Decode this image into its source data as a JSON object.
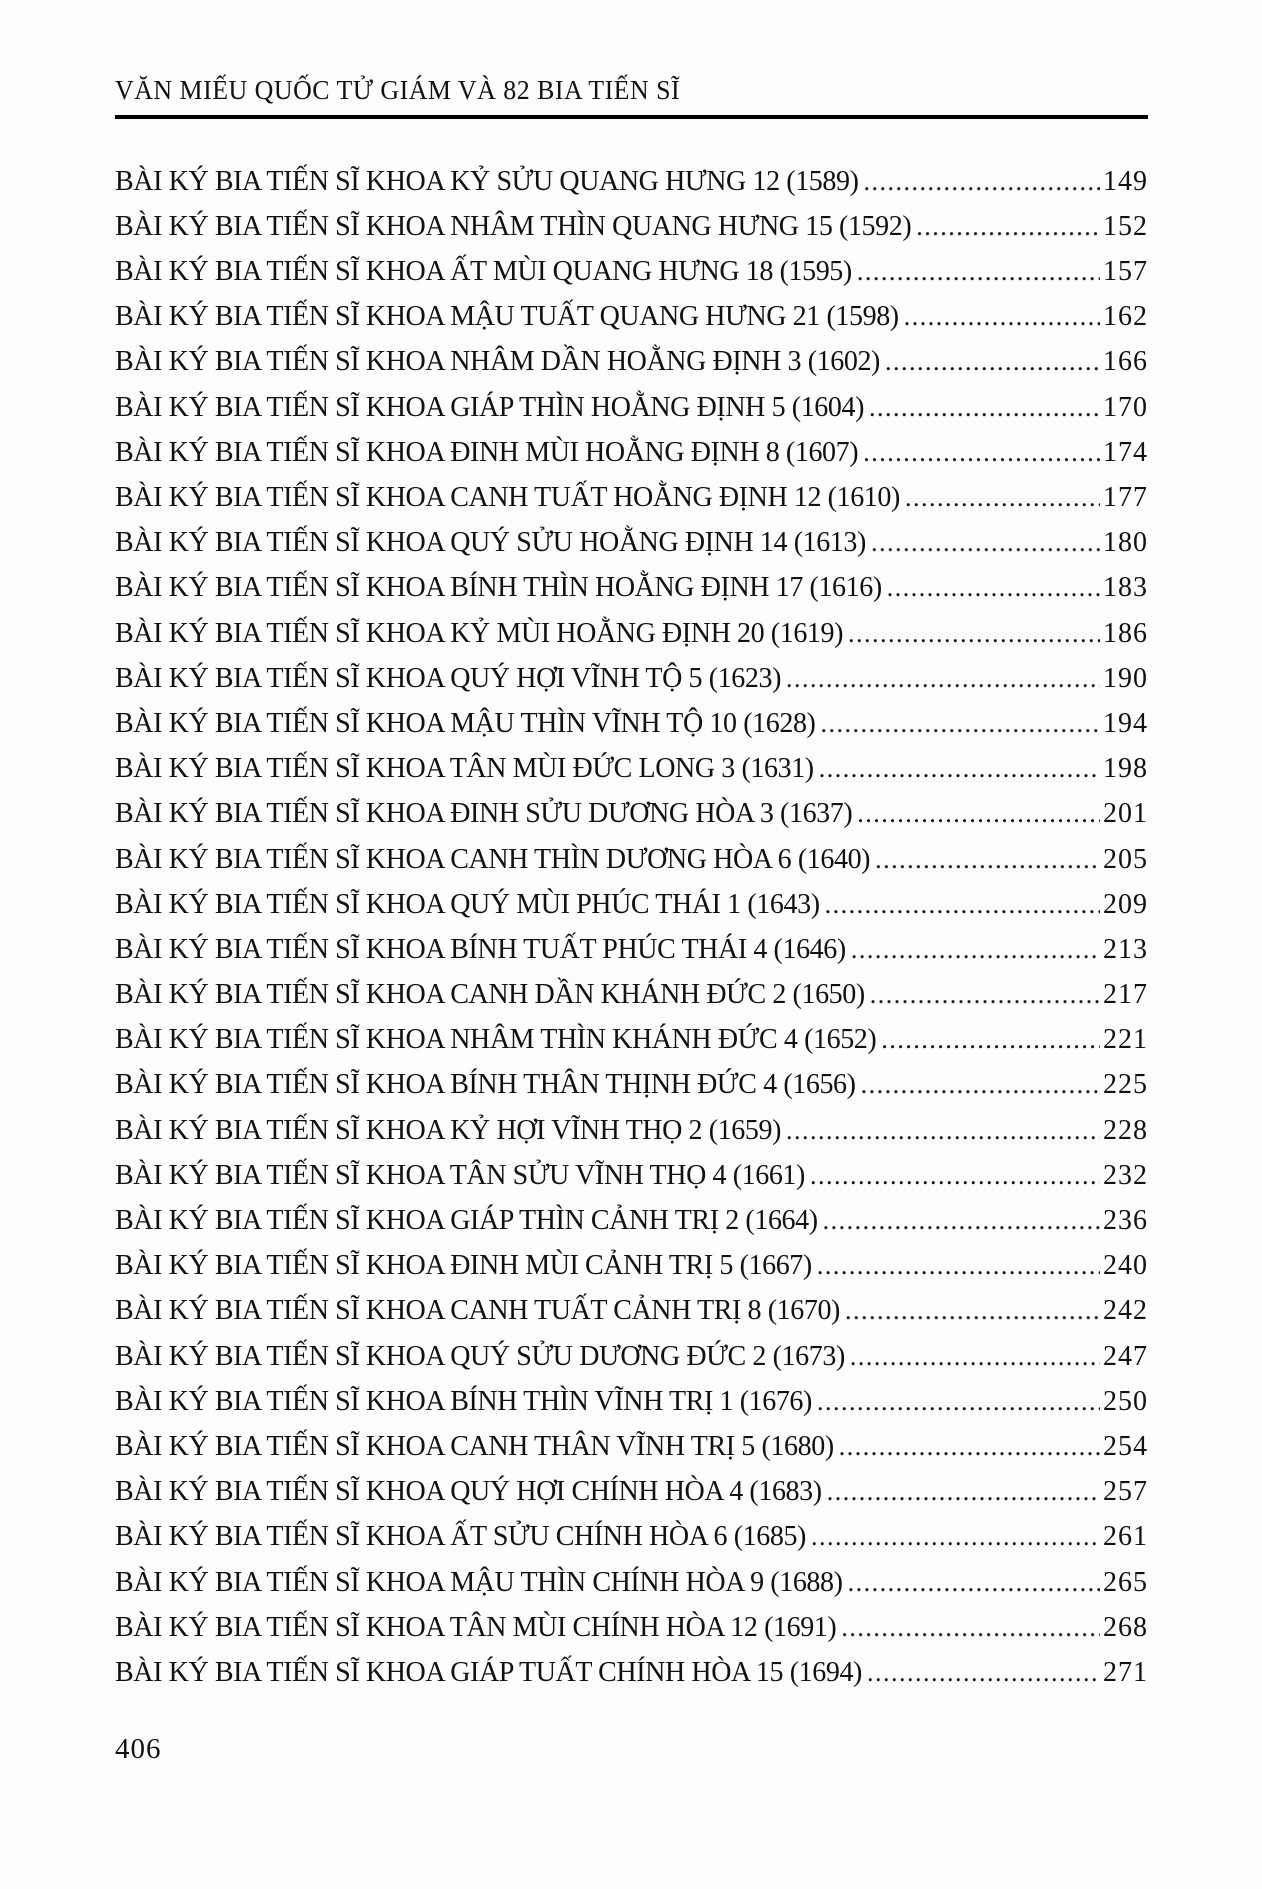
{
  "colors": {
    "page_background": "#fdfdfc",
    "text": "#111111",
    "rule": "#000000"
  },
  "header": {
    "title": "VĂN MIẾU QUỐC TỬ GIÁM VÀ 82 BIA TIẾN SĨ"
  },
  "toc": {
    "entries": [
      {
        "label": "BÀI KÝ BIA TIẾN SĨ KHOA KỶ SỬU QUANG HƯNG 12 (1589)",
        "page": "149"
      },
      {
        "label": "BÀI KÝ BIA TIẾN SĨ KHOA NHÂM THÌN QUANG HƯNG 15 (1592)",
        "page": "152"
      },
      {
        "label": "BÀI KÝ BIA TIẾN SĨ KHOA ẤT MÙI QUANG HƯNG 18 (1595)",
        "page": "157"
      },
      {
        "label": "BÀI KÝ BIA TIẾN SĨ KHOA MẬU TUẤT QUANG HƯNG 21 (1598)",
        "page": "162"
      },
      {
        "label": "BÀI KÝ BIA TIẾN SĨ KHOA NHÂM DẦN HOẰNG ĐỊNH 3 (1602)",
        "page": "166"
      },
      {
        "label": "BÀI KÝ BIA TIẾN SĨ KHOA GIÁP THÌN HOẰNG ĐỊNH 5 (1604)",
        "page": "170"
      },
      {
        "label": "BÀI KÝ BIA TIẾN SĨ KHOA ĐINH MÙI HOẰNG ĐỊNH 8 (1607)",
        "page": "174"
      },
      {
        "label": "BÀI KÝ BIA TIẾN SĨ KHOA CANH TUẤT HOẰNG ĐỊNH 12 (1610)",
        "page": "177"
      },
      {
        "label": "BÀI KÝ BIA TIẾN SĨ KHOA QUÝ SỬU HOẰNG ĐỊNH 14 (1613)",
        "page": "180"
      },
      {
        "label": "BÀI KÝ BIA TIẾN SĨ KHOA BÍNH THÌN HOẰNG ĐỊNH 17 (1616)",
        "page": "183"
      },
      {
        "label": "BÀI KÝ BIA TIẾN SĨ KHOA KỶ MÙI HOẰNG ĐỊNH 20 (1619)",
        "page": "186"
      },
      {
        "label": "BÀI KÝ BIA TIẾN SĨ KHOA QUÝ HỢI VĨNH TỘ 5 (1623)",
        "page": "190"
      },
      {
        "label": "BÀI KÝ BIA TIẾN SĨ KHOA MẬU THÌN VĨNH TỘ 10 (1628)",
        "page": "194"
      },
      {
        "label": "BÀI KÝ BIA TIẾN SĨ KHOA TÂN MÙI ĐỨC LONG 3 (1631)",
        "page": "198"
      },
      {
        "label": "BÀI KÝ BIA TIẾN SĨ KHOA ĐINH SỬU DƯƠNG HÒA 3 (1637)",
        "page": "201"
      },
      {
        "label": "BÀI KÝ BIA TIẾN SĨ KHOA CANH THÌN DƯƠNG HÒA 6 (1640)",
        "page": "205"
      },
      {
        "label": "BÀI KÝ BIA TIẾN SĨ KHOA QUÝ MÙI PHÚC THÁI 1 (1643)",
        "page": "209"
      },
      {
        "label": "BÀI KÝ BIA TIẾN SĨ KHOA BÍNH TUẤT PHÚC THÁI 4 (1646)",
        "page": "213"
      },
      {
        "label": "BÀI KÝ BIA TIẾN SĨ KHOA CANH DẦN KHÁNH ĐỨC 2 (1650)",
        "page": "217"
      },
      {
        "label": "BÀI KÝ BIA TIẾN SĨ KHOA NHÂM THÌN KHÁNH ĐỨC 4 (1652)",
        "page": "221"
      },
      {
        "label": "BÀI KÝ BIA TIẾN SĨ KHOA BÍNH THÂN THỊNH ĐỨC 4 (1656)",
        "page": "225"
      },
      {
        "label": "BÀI KÝ BIA TIẾN SĨ KHOA KỶ HỢI VĨNH THỌ 2 (1659)",
        "page": "228"
      },
      {
        "label": "BÀI KÝ BIA TIẾN SĨ KHOA TÂN SỬU VĨNH THỌ 4 (1661)",
        "page": "232"
      },
      {
        "label": "BÀI KÝ BIA TIẾN SĨ KHOA GIÁP THÌN CẢNH TRỊ 2 (1664)",
        "page": "236"
      },
      {
        "label": "BÀI KÝ BIA TIẾN SĨ KHOA ĐINH MÙI CẢNH TRỊ 5 (1667)",
        "page": "240"
      },
      {
        "label": "BÀI KÝ BIA TIẾN SĨ KHOA CANH TUẤT CẢNH TRỊ 8 (1670)",
        "page": "242"
      },
      {
        "label": "BÀI KÝ BIA TIẾN SĨ KHOA QUÝ SỬU DƯƠNG ĐỨC 2 (1673)",
        "page": "247"
      },
      {
        "label": "BÀI KÝ BIA TIẾN SĨ KHOA BÍNH THÌN VĨNH TRỊ 1 (1676)",
        "page": "250"
      },
      {
        "label": "BÀI KÝ BIA TIẾN SĨ KHOA CANH THÂN VĨNH TRỊ 5 (1680)",
        "page": "254"
      },
      {
        "label": "BÀI KÝ BIA TIẾN SĨ KHOA QUÝ HỢI CHÍNH HÒA 4 (1683)",
        "page": "257"
      },
      {
        "label": "BÀI KÝ BIA TIẾN SĨ KHOA ẤT SỬU CHÍNH HÒA 6 (1685)",
        "page": "261"
      },
      {
        "label": "BÀI KÝ BIA TIẾN SĨ KHOA MẬU THÌN CHÍNH HÒA 9 (1688)",
        "page": "265"
      },
      {
        "label": "BÀI KÝ BIA TIẾN SĨ KHOA TÂN MÙI CHÍNH HÒA 12 (1691)",
        "page": "268"
      },
      {
        "label": "BÀI KÝ BIA TIẾN SĨ KHOA GIÁP TUẤT CHÍNH HÒA 15 (1694)",
        "page": "271"
      }
    ]
  },
  "footer": {
    "page_number": "406"
  }
}
